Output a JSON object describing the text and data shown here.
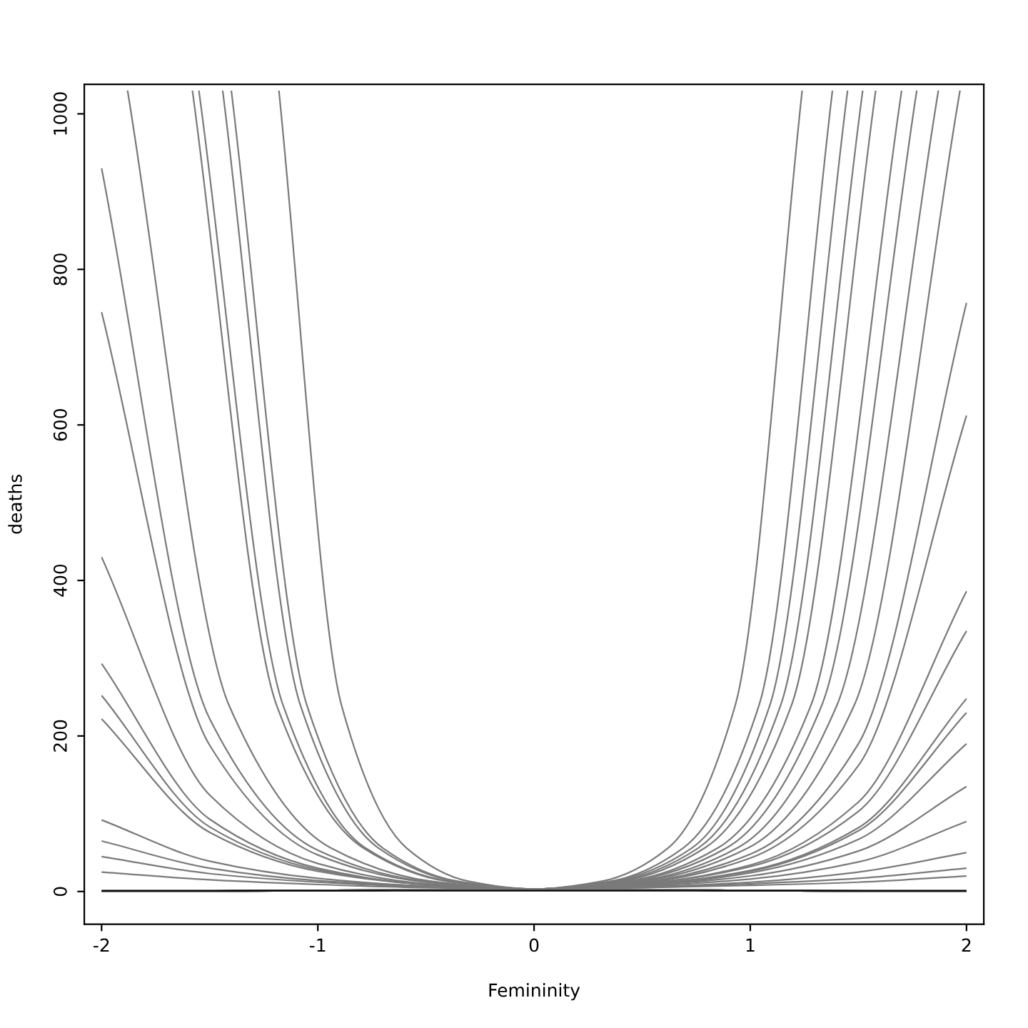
{
  "chart_data": {
    "type": "line",
    "xlabel": "Femininity",
    "ylabel": "deaths",
    "xlim": [
      -2.08,
      2.08
    ],
    "ylim": [
      -42,
      1038
    ],
    "xticks": [
      -2,
      -1,
      0,
      1,
      2
    ],
    "yticks": [
      0,
      200,
      400,
      600,
      800,
      1000
    ],
    "grid": false,
    "line_style": "solid",
    "series": [
      {
        "color": "#7a7a7a",
        "x": [
          -2,
          0,
          0.5,
          1,
          1.5,
          2
        ],
        "values": [
          0,
          3,
          12,
          48,
          190,
          757
        ]
      },
      {
        "color": "#7a7a7a",
        "x": [
          -2,
          0,
          0.5,
          1,
          1.5,
          2
        ],
        "values": [
          0,
          3,
          11,
          43,
          162,
          612
        ]
      },
      {
        "color": "#7a7a7a",
        "x": [
          -2,
          0,
          0.5,
          1,
          1.5,
          2
        ],
        "values": [
          0,
          3,
          10,
          34,
          115,
          386
        ]
      },
      {
        "color": "#7a7a7a",
        "x": [
          -2,
          0,
          0.5,
          1,
          1.5,
          2
        ],
        "values": [
          0,
          3,
          10,
          32,
          103,
          335
        ]
      },
      {
        "color": "#7a7a7a",
        "x": [
          -2,
          0,
          0.5,
          1,
          1.5,
          2
        ],
        "values": [
          0,
          3,
          9,
          27,
          82,
          248
        ]
      },
      {
        "color": "#7a7a7a",
        "x": [
          -2,
          0,
          0.5,
          1,
          1.5,
          2
        ],
        "values": [
          0,
          3,
          9,
          26,
          78,
          230
        ]
      },
      {
        "color": "#7a7a7a",
        "x": [
          -2,
          0,
          0.5,
          1,
          1.5,
          2
        ],
        "values": [
          0,
          3,
          8,
          24,
          67,
          190
        ]
      },
      {
        "color": "#7a7a7a",
        "x": [
          -2,
          0,
          0.5,
          1,
          1.5,
          2
        ],
        "values": [
          0,
          3,
          8,
          20,
          52,
          135
        ]
      },
      {
        "color": "#7a7a7a",
        "x": [
          -2,
          0,
          0.5,
          1,
          1.5,
          2
        ],
        "values": [
          0,
          3,
          7,
          16,
          38,
          90
        ]
      },
      {
        "color": "#7a7a7a",
        "x": [
          -2,
          0,
          0.5,
          1,
          1.5,
          2
        ],
        "values": [
          0,
          3,
          6,
          12,
          25,
          50
        ]
      },
      {
        "color": "#7a7a7a",
        "x": [
          -2,
          0,
          0.5,
          1,
          1.5,
          2
        ],
        "values": [
          0,
          3,
          5,
          10,
          17,
          30
        ]
      },
      {
        "color": "#7a7a7a",
        "x": [
          -2,
          0,
          0.5,
          1,
          1.5,
          2
        ],
        "values": [
          0,
          3,
          5,
          8,
          12,
          20
        ]
      },
      {
        "color": "#7a7a7a",
        "x": [
          -2,
          0,
          0.31,
          0.62,
          0.93,
          1.24
        ],
        "values": [
          0,
          3,
          13,
          56,
          239,
          1030
        ]
      },
      {
        "color": "#7a7a7a",
        "x": [
          -2,
          0,
          0.35,
          0.69,
          1.04,
          1.38
        ],
        "values": [
          0,
          3,
          13,
          56,
          239,
          1030
        ]
      },
      {
        "color": "#7a7a7a",
        "x": [
          -2,
          0,
          0.36,
          0.73,
          1.09,
          1.45
        ],
        "values": [
          0,
          3,
          13,
          56,
          239,
          1030
        ]
      },
      {
        "color": "#7a7a7a",
        "x": [
          -2,
          0,
          0.38,
          0.76,
          1.14,
          1.52
        ],
        "values": [
          0,
          3,
          13,
          56,
          239,
          1030
        ]
      },
      {
        "color": "#7a7a7a",
        "x": [
          -2,
          0,
          0.4,
          0.79,
          1.19,
          1.58
        ],
        "values": [
          0,
          3,
          13,
          56,
          239,
          1030
        ]
      },
      {
        "color": "#7a7a7a",
        "x": [
          -2,
          0,
          0.43,
          0.85,
          1.28,
          1.7
        ],
        "values": [
          0,
          3,
          13,
          56,
          239,
          1030
        ]
      },
      {
        "color": "#7a7a7a",
        "x": [
          -2,
          0,
          0.44,
          0.89,
          1.33,
          1.77
        ],
        "values": [
          0,
          3,
          13,
          56,
          239,
          1030
        ]
      },
      {
        "color": "#7a7a7a",
        "x": [
          -2,
          0,
          0.47,
          0.94,
          1.4,
          1.87
        ],
        "values": [
          0,
          3,
          13,
          56,
          239,
          1030
        ]
      },
      {
        "color": "#7a7a7a",
        "x": [
          -2,
          0,
          0.49,
          0.99,
          1.48,
          1.97
        ],
        "values": [
          0,
          3,
          13,
          56,
          239,
          1030
        ]
      },
      {
        "color": "#7a7a7a",
        "x": [
          -2,
          -1.5,
          -1,
          -0.5,
          0,
          2
        ],
        "values": [
          930,
          222,
          53,
          13,
          3,
          0
        ]
      },
      {
        "color": "#7a7a7a",
        "x": [
          -2,
          -1.5,
          -1,
          -0.5,
          0,
          2
        ],
        "values": [
          745,
          188,
          47,
          12,
          3,
          0
        ]
      },
      {
        "color": "#7a7a7a",
        "x": [
          -2,
          -1.5,
          -1,
          -0.5,
          0,
          2
        ],
        "values": [
          430,
          124,
          36,
          10,
          3,
          0
        ]
      },
      {
        "color": "#7a7a7a",
        "x": [
          -2,
          -1.5,
          -1,
          -0.5,
          0,
          2
        ],
        "values": [
          293,
          93,
          30,
          9,
          3,
          0
        ]
      },
      {
        "color": "#7a7a7a",
        "x": [
          -2,
          -1.5,
          -1,
          -0.5,
          0,
          2
        ],
        "values": [
          252,
          83,
          28,
          9,
          3,
          0
        ]
      },
      {
        "color": "#7a7a7a",
        "x": [
          -2,
          -1.5,
          -1,
          -0.5,
          0,
          2
        ],
        "values": [
          222,
          76,
          26,
          9,
          3,
          0
        ]
      },
      {
        "color": "#7a7a7a",
        "x": [
          -2,
          -1.5,
          -1,
          -0.5,
          0,
          2
        ],
        "values": [
          92,
          39,
          17,
          7,
          3,
          0
        ]
      },
      {
        "color": "#7a7a7a",
        "x": [
          -2,
          -1.5,
          -1,
          -0.5,
          0,
          2
        ],
        "values": [
          65,
          30,
          14,
          7,
          3,
          0
        ]
      },
      {
        "color": "#7a7a7a",
        "x": [
          -2,
          -1.5,
          -1,
          -0.5,
          0,
          2
        ],
        "values": [
          45,
          23,
          12,
          6,
          3,
          0
        ]
      },
      {
        "color": "#7a7a7a",
        "x": [
          -2,
          -1.5,
          -1,
          -0.5,
          0,
          2
        ],
        "values": [
          25,
          15,
          9,
          5,
          3,
          0
        ]
      },
      {
        "color": "#7a7a7a",
        "x": [
          -1.88,
          -1.41,
          -0.94,
          -0.47,
          0,
          2
        ],
        "values": [
          1030,
          239,
          56,
          13,
          3,
          0
        ]
      },
      {
        "color": "#7a7a7a",
        "x": [
          -1.58,
          -1.19,
          -0.79,
          -0.4,
          0,
          2
        ],
        "values": [
          1030,
          239,
          56,
          13,
          3,
          0
        ]
      },
      {
        "color": "#7a7a7a",
        "x": [
          -1.55,
          -1.16,
          -0.78,
          -0.39,
          0,
          2
        ],
        "values": [
          1030,
          239,
          56,
          13,
          3,
          0
        ]
      },
      {
        "color": "#7a7a7a",
        "x": [
          -1.44,
          -1.08,
          -0.72,
          -0.36,
          0,
          2
        ],
        "values": [
          1030,
          239,
          56,
          13,
          3,
          0
        ]
      },
      {
        "color": "#7a7a7a",
        "x": [
          -1.4,
          -1.05,
          -0.7,
          -0.35,
          0,
          2
        ],
        "values": [
          1030,
          239,
          56,
          13,
          3,
          0
        ]
      },
      {
        "color": "#7a7a7a",
        "x": [
          -1.18,
          -0.89,
          -0.59,
          -0.3,
          0,
          2
        ],
        "values": [
          1030,
          239,
          56,
          13,
          3,
          0
        ]
      },
      {
        "color": "#000000",
        "x": [
          -2,
          0,
          2
        ],
        "values": [
          1,
          1,
          1
        ]
      }
    ]
  }
}
